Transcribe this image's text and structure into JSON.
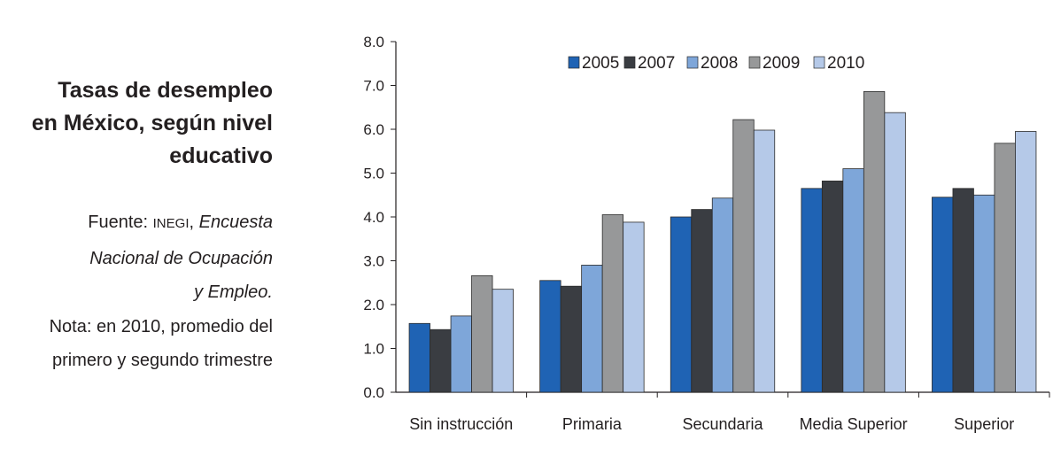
{
  "sidebar": {
    "title_lines": [
      "Tasas de desempleo",
      "en México, según nivel",
      "educativo"
    ],
    "source_prefix": "Fuente: ",
    "source_org": "INEGI",
    "source_sep": ", ",
    "source_title_1": "Encuesta",
    "source_title_2": "Nacional de Ocupación",
    "source_title_3": "y Empleo.",
    "note_1": "Nota: en 2010, promedio del",
    "note_2": "primero y segundo trimestre"
  },
  "chart_data": {
    "type": "bar",
    "categories": [
      "Sin instrucción",
      "Primaria",
      "Secundaria",
      "Media Superior",
      "Superior"
    ],
    "series": [
      {
        "name": "2005",
        "color": "#1f63b4",
        "values": [
          1.57,
          2.55,
          4.0,
          4.65,
          4.45
        ]
      },
      {
        "name": "2007",
        "color": "#3a3d42",
        "values": [
          1.43,
          2.42,
          4.17,
          4.82,
          4.65
        ]
      },
      {
        "name": "2008",
        "color": "#7ea6d9",
        "values": [
          1.74,
          2.9,
          4.43,
          5.1,
          4.5
        ]
      },
      {
        "name": "2009",
        "color": "#979899",
        "values": [
          2.66,
          4.05,
          6.22,
          6.86,
          5.68
        ]
      },
      {
        "name": "2010",
        "color": "#b5c9e8",
        "values": [
          2.35,
          3.88,
          5.98,
          6.38,
          5.95
        ]
      }
    ],
    "ylim": [
      0,
      8
    ],
    "yticks": [
      "0.0",
      "1.0",
      "2.0",
      "3.0",
      "4.0",
      "5.0",
      "6.0",
      "7.0",
      "8.0"
    ],
    "ytick_values": [
      0,
      1,
      2,
      3,
      4,
      5,
      6,
      7,
      8
    ],
    "legend_position": "top",
    "grid": false
  }
}
